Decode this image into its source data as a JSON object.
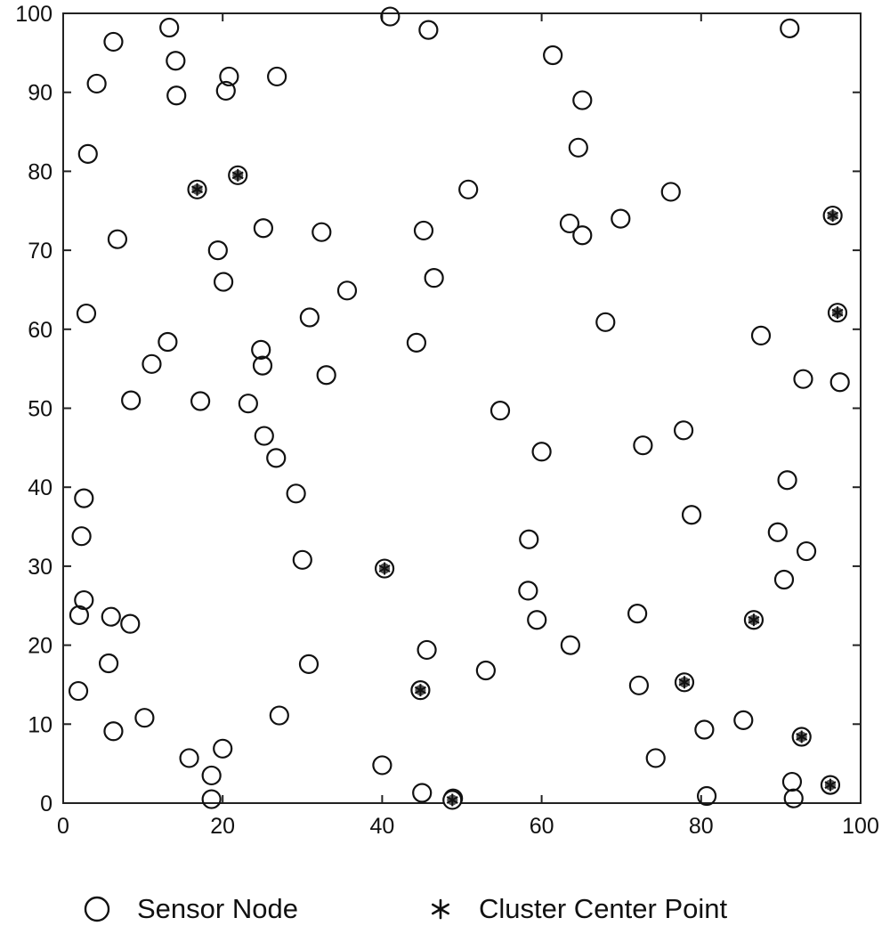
{
  "chart_data": {
    "type": "scatter",
    "title": "",
    "xlabel": "",
    "ylabel": "",
    "xlim": [
      0,
      100
    ],
    "ylim": [
      0,
      100
    ],
    "xticks": [
      0,
      20,
      40,
      60,
      80,
      100
    ],
    "yticks": [
      0,
      10,
      20,
      30,
      40,
      50,
      60,
      70,
      80,
      90,
      100
    ],
    "xtick_labels": [
      "0",
      "20",
      "40",
      "60",
      "80",
      "100"
    ],
    "ytick_labels": [
      "0",
      "10",
      "20",
      "30",
      "40",
      "50",
      "60",
      "70",
      "80",
      "90",
      "100"
    ],
    "grid": false,
    "legend_position": "bottom",
    "series": [
      {
        "name": "Sensor Node",
        "marker": "circle",
        "color": "#000000",
        "points": [
          [
            13.3,
            98.2
          ],
          [
            6.3,
            96.4
          ],
          [
            14.1,
            94.0
          ],
          [
            4.2,
            91.1
          ],
          [
            14.2,
            89.6
          ],
          [
            20.8,
            92.0
          ],
          [
            20.4,
            90.2
          ],
          [
            26.8,
            92.0
          ],
          [
            41.0,
            99.6
          ],
          [
            45.8,
            97.9
          ],
          [
            61.4,
            94.7
          ],
          [
            65.1,
            89.0
          ],
          [
            91.1,
            98.1
          ],
          [
            64.6,
            83.0
          ],
          [
            3.1,
            82.2
          ],
          [
            6.8,
            71.4
          ],
          [
            19.4,
            70.0
          ],
          [
            25.1,
            72.8
          ],
          [
            32.4,
            72.3
          ],
          [
            20.1,
            66.0
          ],
          [
            35.6,
            64.9
          ],
          [
            45.2,
            72.5
          ],
          [
            46.5,
            66.5
          ],
          [
            50.8,
            77.7
          ],
          [
            63.5,
            73.4
          ],
          [
            65.1,
            71.9
          ],
          [
            69.9,
            74.0
          ],
          [
            76.2,
            77.4
          ],
          [
            68.0,
            60.9
          ],
          [
            2.9,
            62.0
          ],
          [
            13.1,
            58.4
          ],
          [
            11.1,
            55.6
          ],
          [
            24.8,
            57.4
          ],
          [
            25.0,
            55.4
          ],
          [
            30.9,
            61.5
          ],
          [
            33.0,
            54.2
          ],
          [
            44.3,
            58.3
          ],
          [
            87.5,
            59.2
          ],
          [
            92.8,
            53.7
          ],
          [
            97.4,
            53.3
          ],
          [
            8.5,
            51.0
          ],
          [
            17.2,
            50.9
          ],
          [
            23.2,
            50.6
          ],
          [
            25.2,
            46.5
          ],
          [
            26.7,
            43.7
          ],
          [
            29.2,
            39.2
          ],
          [
            54.8,
            49.7
          ],
          [
            60.0,
            44.5
          ],
          [
            72.7,
            45.3
          ],
          [
            77.8,
            47.2
          ],
          [
            2.6,
            38.6
          ],
          [
            2.3,
            33.8
          ],
          [
            30.0,
            30.8
          ],
          [
            58.4,
            33.4
          ],
          [
            78.8,
            36.5
          ],
          [
            90.8,
            40.9
          ],
          [
            89.6,
            34.3
          ],
          [
            93.2,
            31.9
          ],
          [
            90.4,
            28.3
          ],
          [
            2.6,
            25.7
          ],
          [
            2.0,
            23.8
          ],
          [
            6.0,
            23.6
          ],
          [
            8.4,
            22.7
          ],
          [
            5.7,
            17.7
          ],
          [
            30.8,
            17.6
          ],
          [
            45.6,
            19.4
          ],
          [
            53.0,
            16.8
          ],
          [
            58.3,
            26.9
          ],
          [
            59.4,
            23.2
          ],
          [
            63.6,
            20.0
          ],
          [
            72.0,
            24.0
          ],
          [
            72.2,
            14.9
          ],
          [
            1.9,
            14.2
          ],
          [
            6.3,
            9.1
          ],
          [
            10.2,
            10.8
          ],
          [
            27.1,
            11.1
          ],
          [
            15.8,
            5.7
          ],
          [
            18.6,
            3.5
          ],
          [
            18.6,
            0.5
          ],
          [
            20.0,
            6.9
          ],
          [
            40.0,
            4.8
          ],
          [
            45.0,
            1.3
          ],
          [
            48.9,
            0.6
          ],
          [
            74.3,
            5.7
          ],
          [
            80.4,
            9.3
          ],
          [
            80.7,
            0.9
          ],
          [
            85.3,
            10.5
          ],
          [
            91.4,
            2.7
          ],
          [
            91.6,
            0.6
          ]
        ]
      },
      {
        "name": "Cluster Center Point",
        "marker": "asterisk",
        "color": "#000000",
        "points": [
          [
            16.8,
            77.7
          ],
          [
            21.9,
            79.5
          ],
          [
            96.5,
            74.4
          ],
          [
            97.1,
            62.1
          ],
          [
            40.3,
            29.7
          ],
          [
            86.6,
            23.2
          ],
          [
            44.8,
            14.3
          ],
          [
            77.9,
            15.3
          ],
          [
            92.6,
            8.4
          ],
          [
            96.2,
            2.3
          ],
          [
            48.8,
            0.4
          ]
        ]
      }
    ]
  },
  "legend": {
    "items": [
      {
        "label": "Sensor Node",
        "icon": "circle-marker-icon"
      },
      {
        "label": "Cluster Center Point",
        "icon": "asterisk-marker-icon"
      }
    ]
  }
}
